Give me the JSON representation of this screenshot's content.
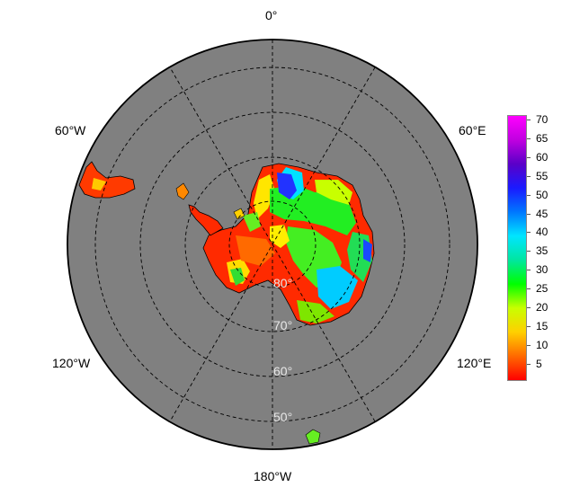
{
  "map": {
    "projection": "south-polar-stereographic",
    "background_color": "#808080",
    "graticule": {
      "style": "dashed",
      "color": "#000000"
    },
    "longitude_labels": {
      "lon_0": "0°",
      "lon_60e": "60°E",
      "lon_120e": "120°E",
      "lon_180": "180°W",
      "lon_120w": "120°W",
      "lon_60w": "60°W"
    },
    "latitude_labels": {
      "lat_80": "80°",
      "lat_70": "70°",
      "lat_60": "60°",
      "lat_50": "50°"
    }
  },
  "colorbar": {
    "colormap": [
      "#ff0000",
      "#ff6a00",
      "#ffd000",
      "#c8ff00",
      "#00ff00",
      "#00e6a0",
      "#00e5ff",
      "#0077ff",
      "#1a1aff",
      "#5a00c8",
      "#c000e0",
      "#ff00ff"
    ],
    "ticks": [
      "70",
      "65",
      "60",
      "55",
      "50",
      "45",
      "40",
      "35",
      "30",
      "25",
      "20",
      "15",
      "10",
      "5"
    ]
  }
}
